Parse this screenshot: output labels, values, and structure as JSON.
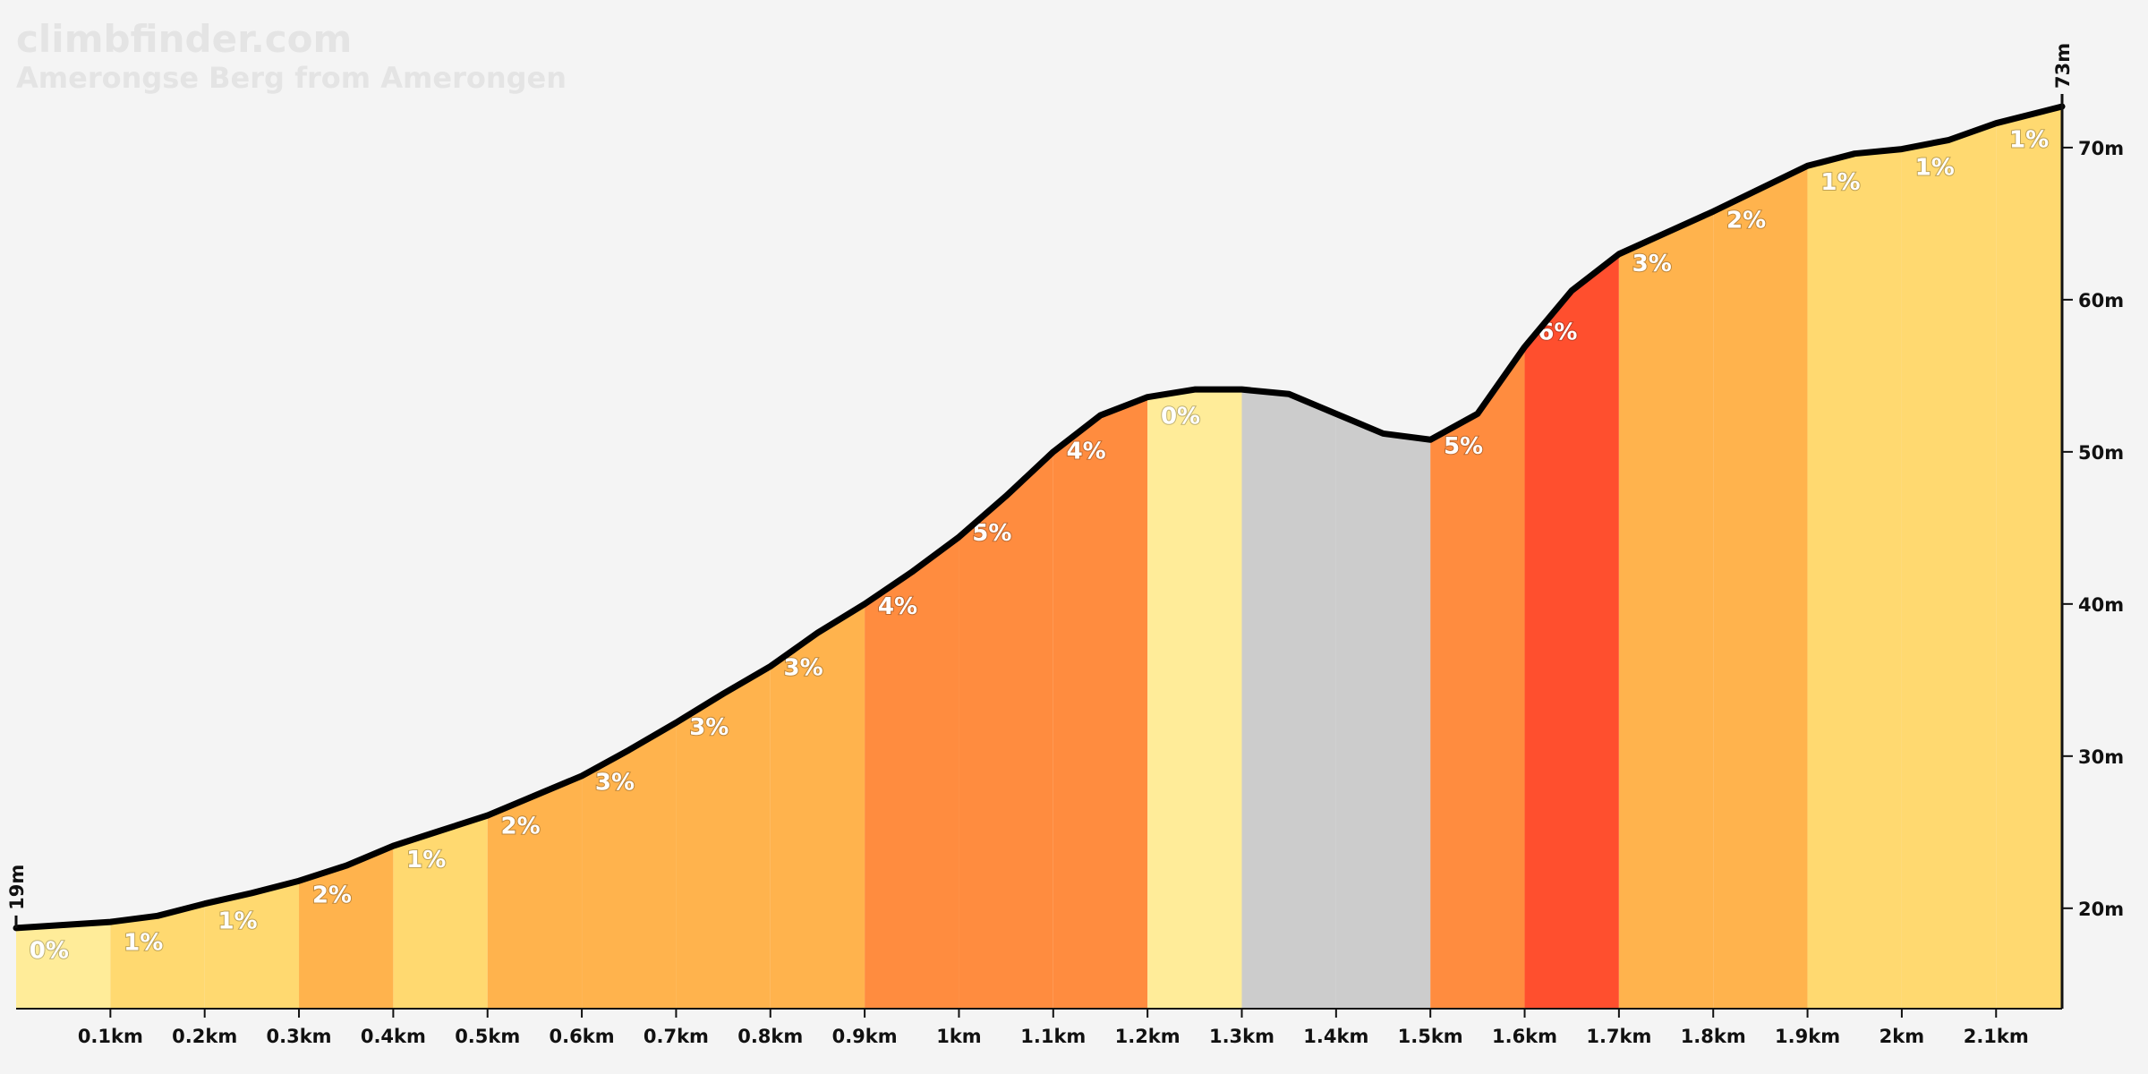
{
  "chart_data": {
    "type": "elevation-profile",
    "title": "climbfinder.com",
    "subtitle": "Amerongse Berg from Amerongen",
    "start_label": "19m",
    "end_label": "73m",
    "distance": [
      0,
      0.05,
      0.1,
      0.15,
      0.2,
      0.25,
      0.3,
      0.35,
      0.4,
      0.45,
      0.5,
      0.55,
      0.6,
      0.65,
      0.7,
      0.75,
      0.8,
      0.85,
      0.9,
      0.95,
      1.0,
      1.05,
      1.1,
      1.15,
      1.2,
      1.25,
      1.3,
      1.35,
      1.4,
      1.45,
      1.5,
      1.55,
      1.6,
      1.65,
      1.7,
      1.75,
      1.8,
      1.85,
      1.9,
      1.95,
      2.0,
      2.05,
      2.1,
      2.17
    ],
    "elevation": [
      18.7,
      18.9,
      19.1,
      19.5,
      20.3,
      21.0,
      21.8,
      22.8,
      24.1,
      25.1,
      26.1,
      27.4,
      28.7,
      30.4,
      32.2,
      34.1,
      35.9,
      38.1,
      40.0,
      42.1,
      44.4,
      47.1,
      50.0,
      52.4,
      53.6,
      54.1,
      54.1,
      53.8,
      52.5,
      51.2,
      50.8,
      52.5,
      56.9,
      60.6,
      63.0,
      64.4,
      65.8,
      67.3,
      68.8,
      69.6,
      69.9,
      70.5,
      71.6,
      72.7
    ],
    "segment_bounds": [
      0,
      0.1,
      0.2,
      0.3,
      0.4,
      0.5,
      0.6,
      0.7,
      0.8,
      0.9,
      1.0,
      1.1,
      1.2,
      1.3,
      1.4,
      1.5,
      1.6,
      1.7,
      1.8,
      1.9,
      2.0,
      2.1,
      2.17
    ],
    "gradients": [
      0,
      1,
      1,
      2,
      1,
      2,
      3,
      3,
      3,
      4,
      5,
      4,
      0,
      null,
      null,
      5,
      6,
      3,
      2,
      1,
      1,
      1
    ],
    "value_labels": [
      "0%",
      "1%",
      "1%",
      "2%",
      "1%",
      "2%",
      "3%",
      "3%",
      "3%",
      "4%",
      "5%",
      "4%",
      "0%",
      null,
      null,
      "5%",
      "6%",
      "3%",
      "2%",
      "1%",
      "1%",
      "1%"
    ],
    "colors": [
      "#ffec99",
      "#ffd970",
      "#ffd970",
      "#ffb34d",
      "#ffd970",
      "#ffb34d",
      "#ffb34d",
      "#ffb34d",
      "#ffb34d",
      "#ff8c3f",
      "#ff8c3f",
      "#ff8c3f",
      "#ffec99",
      "#cccccc",
      "#cccccc",
      "#ff8c3f",
      "#ff4f2e",
      "#ffb34d",
      "#ffb34d",
      "#ffd970",
      "#ffd970",
      "#ffd970"
    ],
    "line_color": "#000000",
    "xlim": [
      0,
      2.17
    ],
    "ylim": [
      13.4,
      79.7
    ],
    "xticks": [
      {
        "value": 0.1,
        "label": "0.1km"
      },
      {
        "value": 0.2,
        "label": "0.2km"
      },
      {
        "value": 0.3,
        "label": "0.3km"
      },
      {
        "value": 0.4,
        "label": "0.4km"
      },
      {
        "value": 0.5,
        "label": "0.5km"
      },
      {
        "value": 0.6,
        "label": "0.6km"
      },
      {
        "value": 0.7,
        "label": "0.7km"
      },
      {
        "value": 0.8,
        "label": "0.8km"
      },
      {
        "value": 0.9,
        "label": "0.9km"
      },
      {
        "value": 1.0,
        "label": "1km"
      },
      {
        "value": 1.1,
        "label": "1.1km"
      },
      {
        "value": 1.2,
        "label": "1.2km"
      },
      {
        "value": 1.3,
        "label": "1.3km"
      },
      {
        "value": 1.4,
        "label": "1.4km"
      },
      {
        "value": 1.5,
        "label": "1.5km"
      },
      {
        "value": 1.6,
        "label": "1.6km"
      },
      {
        "value": 1.7,
        "label": "1.7km"
      },
      {
        "value": 1.8,
        "label": "1.8km"
      },
      {
        "value": 1.9,
        "label": "1.9km"
      },
      {
        "value": 2.0,
        "label": "2km"
      },
      {
        "value": 2.1,
        "label": "2.1km"
      }
    ],
    "yticks": [
      {
        "value": 20,
        "label": "20m"
      },
      {
        "value": 30,
        "label": "30m"
      },
      {
        "value": 40,
        "label": "40m"
      },
      {
        "value": 50,
        "label": "50m"
      },
      {
        "value": 60,
        "label": "60m"
      },
      {
        "value": 70,
        "label": "70m"
      }
    ]
  }
}
